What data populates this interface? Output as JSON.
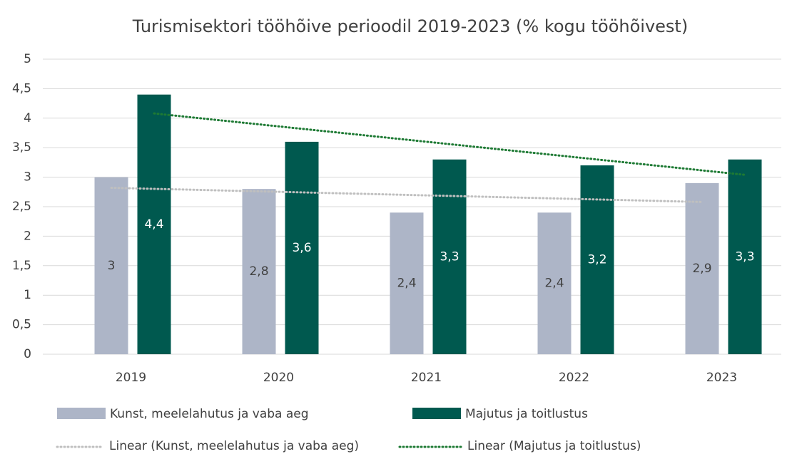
{
  "chart_data": {
    "type": "bar",
    "title": "Turismisektori tööhõive perioodil 2019-2023 (% kogu tööhõivest)",
    "categories": [
      "2019",
      "2020",
      "2021",
      "2022",
      "2023"
    ],
    "series": [
      {
        "name": "Kunst, meelelahutus ja vaba aeg",
        "color": "#adb5c7",
        "values": [
          3,
          2.8,
          2.4,
          2.4,
          2.9
        ],
        "value_labels": [
          "3",
          "2,8",
          "2,4",
          "2,4",
          "2,9"
        ],
        "trendline": {
          "name": "Linear (Kunst, meelelahutus ja vaba aeg)",
          "type": "linear",
          "color": "#bfbfbf"
        }
      },
      {
        "name": "Majutus ja toitlustus",
        "color": "#00594f",
        "values": [
          4.4,
          3.6,
          3.3,
          3.2,
          3.3
        ],
        "value_labels": [
          "4,4",
          "3,6",
          "3,3",
          "3,2",
          "3,3"
        ],
        "trendline": {
          "name": "Linear (Majutus ja toitlustus)",
          "type": "linear",
          "color": "#1e7a34"
        }
      }
    ],
    "ylim": [
      0,
      5
    ],
    "yticks": [
      0,
      {
        "value": 0.5,
        "label": "0,5"
      },
      1,
      {
        "value": 1.5,
        "label": "1,5"
      },
      2,
      {
        "value": 2.5,
        "label": "2,5"
      },
      3,
      {
        "value": 3.5,
        "label": "3,5"
      },
      4,
      {
        "value": 4.5,
        "label": "4,5"
      },
      5
    ],
    "grid": true,
    "legend": "bottom"
  }
}
